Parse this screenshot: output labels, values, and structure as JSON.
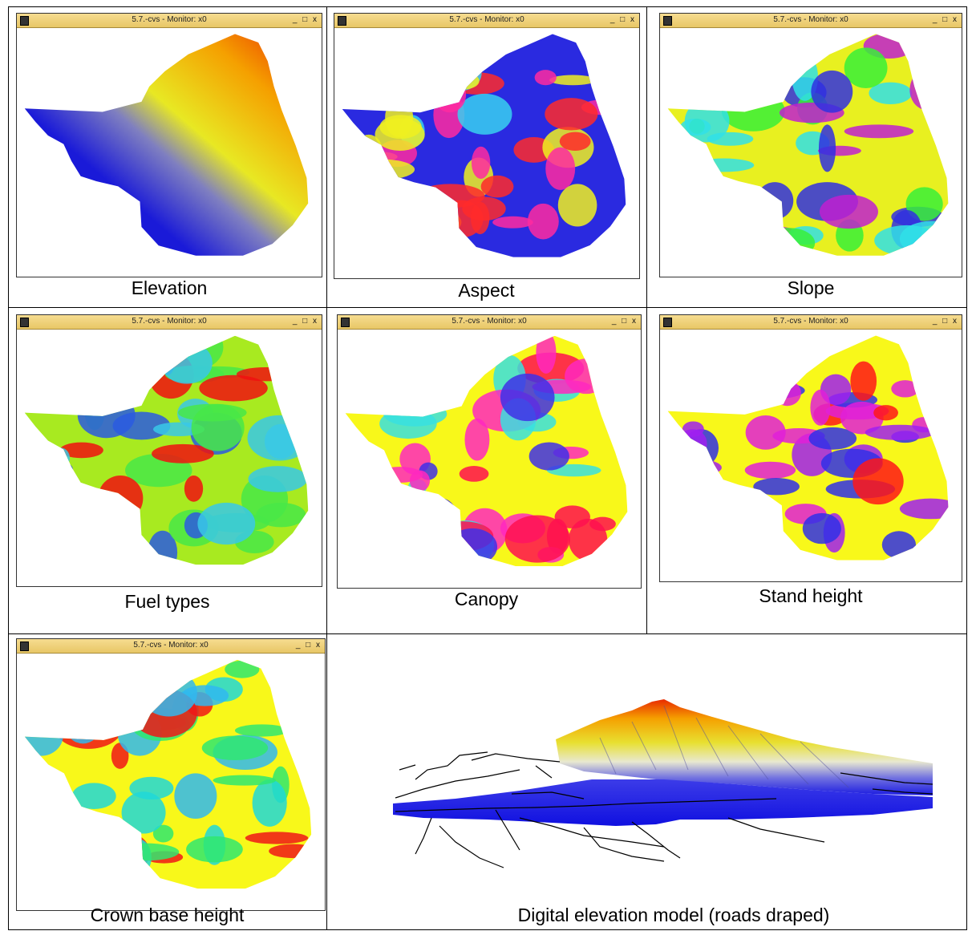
{
  "window_title": "5.7.-cvs - Monitor: x0",
  "window_buttons": "_ □ x",
  "panels": [
    {
      "caption": "Elevation",
      "colors": [
        "#1a1ad8",
        "#7f7fc0",
        "#e8e823",
        "#f5a000",
        "#e82000"
      ]
    },
    {
      "caption": "Aspect",
      "colors": [
        "#2a2ae0",
        "#38d0f0",
        "#ff2aa0",
        "#f0f020",
        "#ff2a2a"
      ]
    },
    {
      "caption": "Slope",
      "colors": [
        "#e8f020",
        "#38f038",
        "#30e0e8",
        "#3030e0",
        "#c020d0"
      ]
    },
    {
      "caption": "Fuel types",
      "colors": [
        "#a8ea20",
        "#48e848",
        "#38c8e8",
        "#2a5ae0",
        "#f01010"
      ]
    },
    {
      "caption": "Canopy",
      "colors": [
        "#f8f81a",
        "#38e0e0",
        "#ff28c0",
        "#4030e8",
        "#ff1050"
      ]
    },
    {
      "caption": "Stand height",
      "colors": [
        "#f8f81a",
        "#a020f0",
        "#e020d8",
        "#3030e8",
        "#ff1818"
      ]
    },
    {
      "caption": "Crown base height",
      "colors": [
        "#f8f81a",
        "#30b8f0",
        "#30e870",
        "#20d8d8",
        "#f01818"
      ]
    }
  ],
  "dem": {
    "caption": "Digital elevation model (roads draped)"
  }
}
